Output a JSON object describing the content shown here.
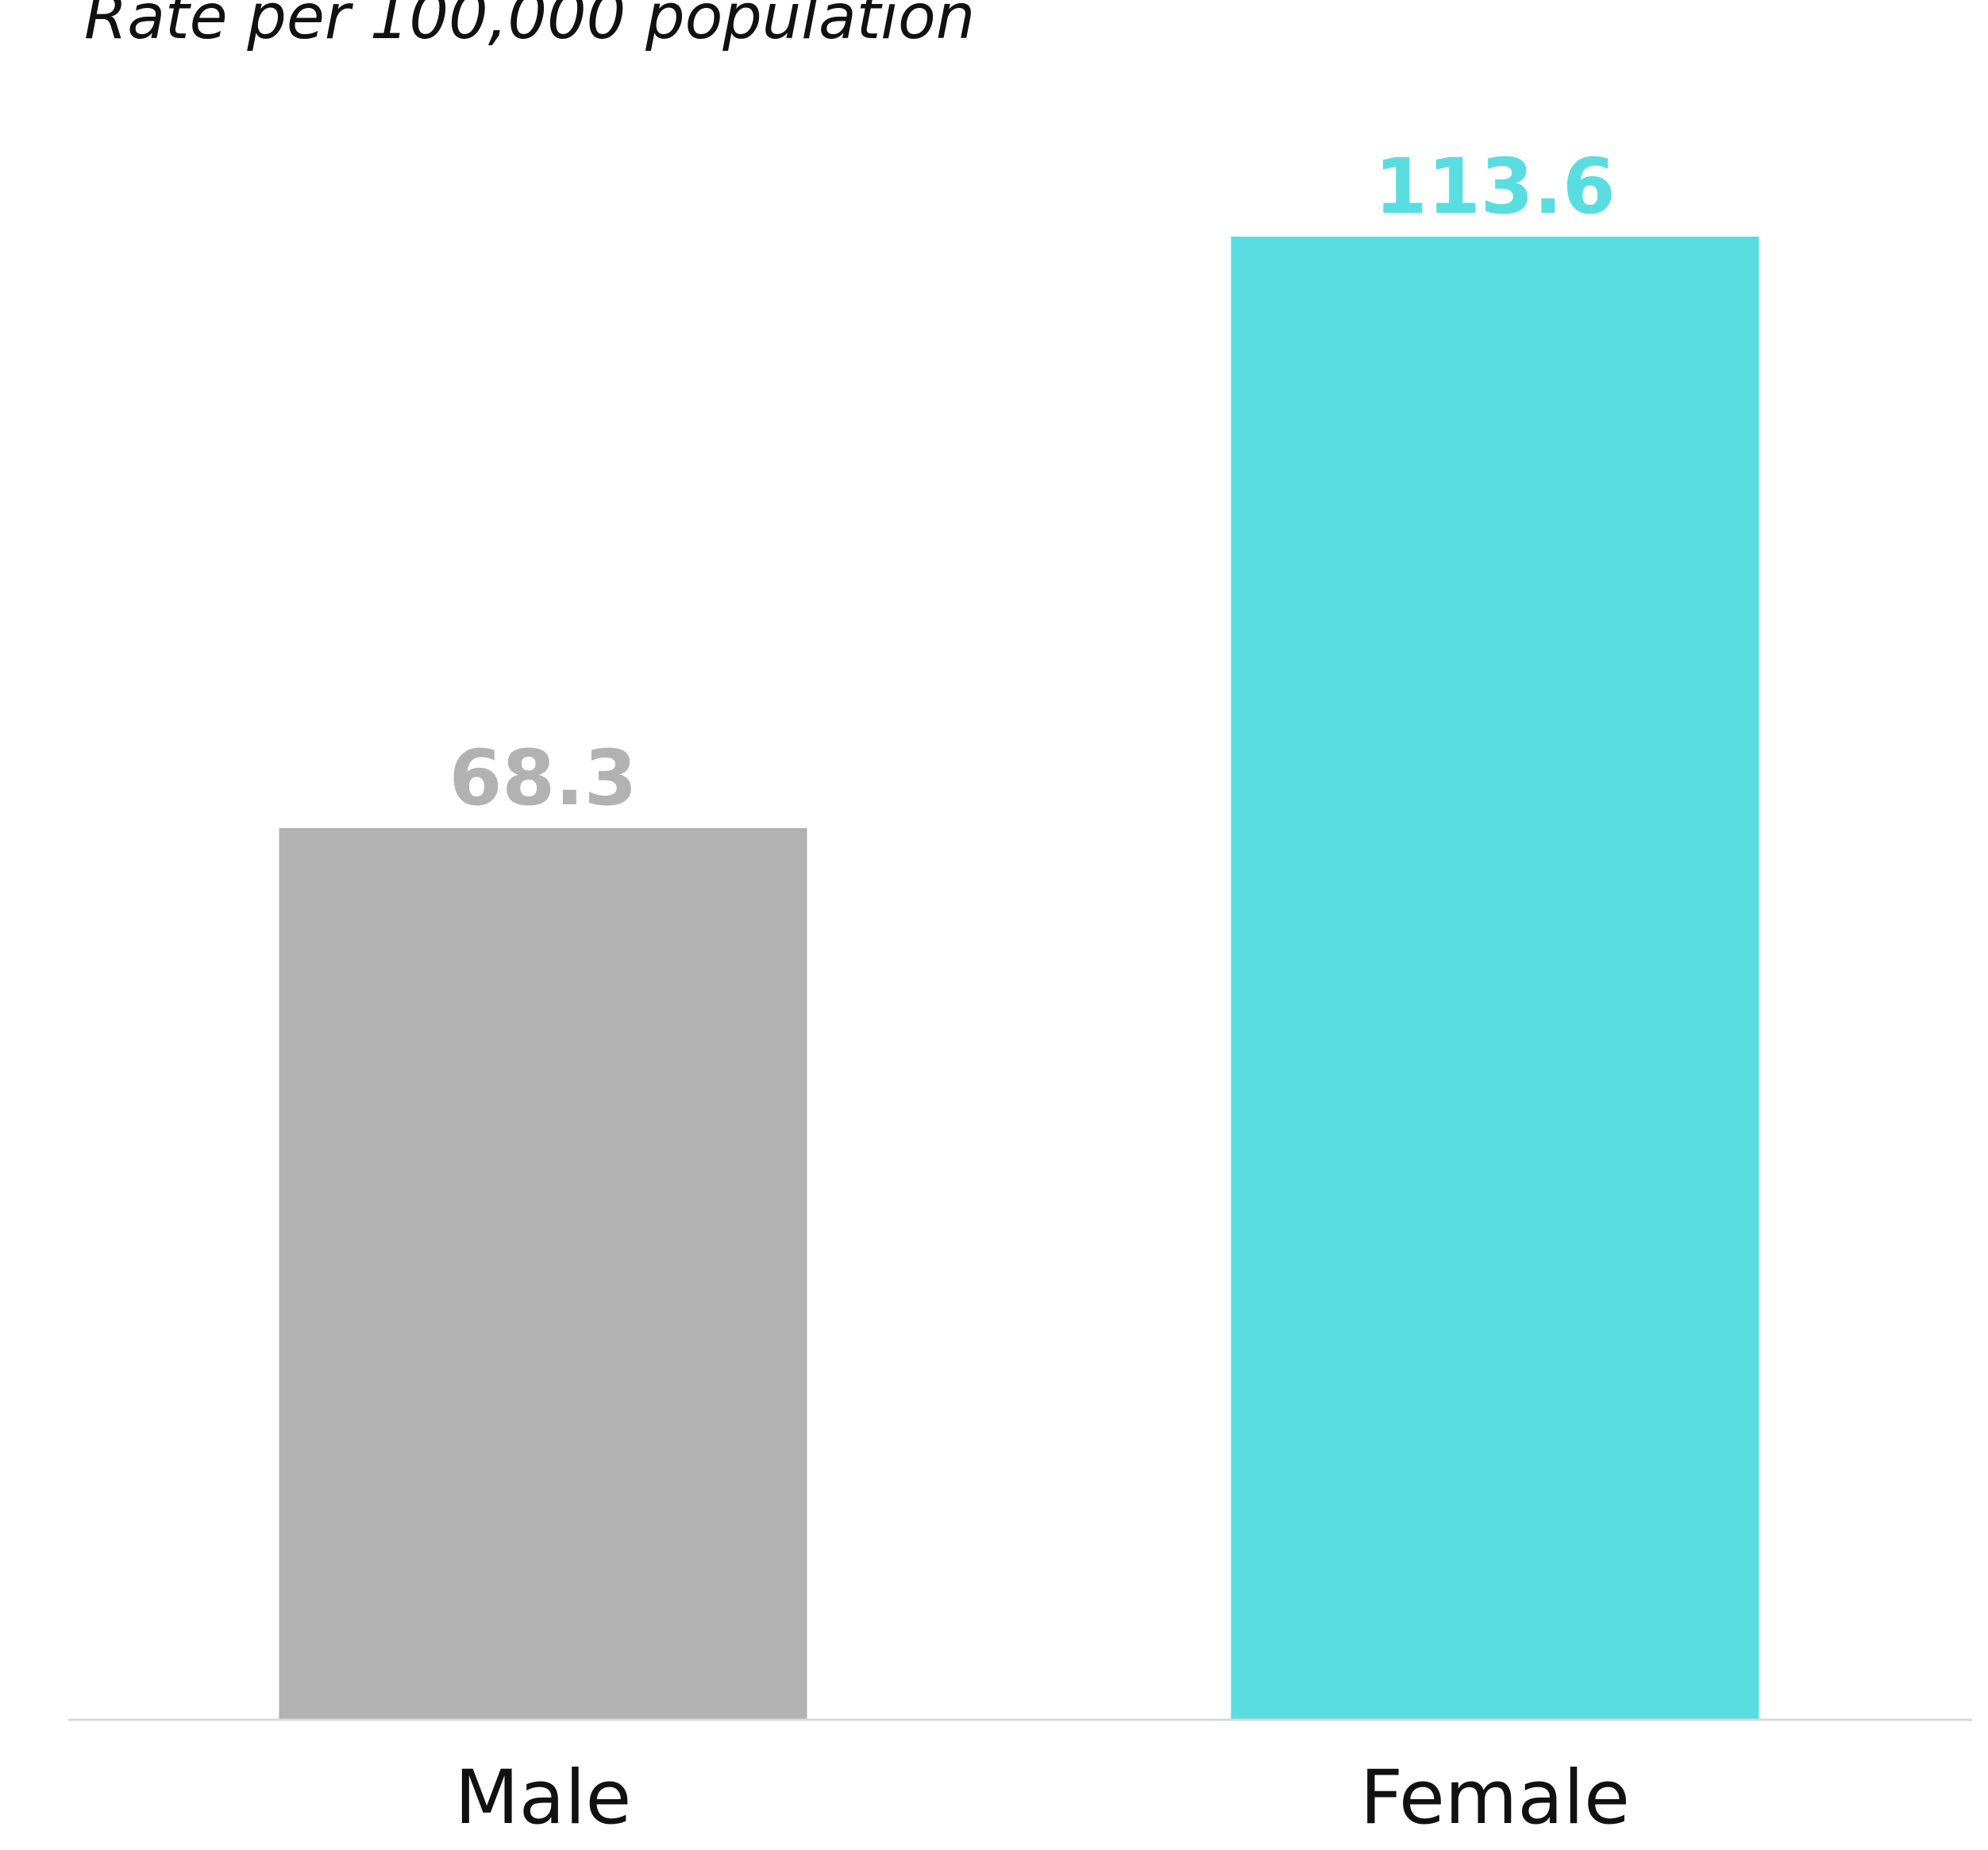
{
  "chart_data": {
    "type": "bar",
    "title": "",
    "ylabel": "Rate per 100,000 population",
    "xlabel": "",
    "categories": [
      "Male",
      "Female"
    ],
    "values": [
      68.3,
      113.6
    ],
    "value_labels": [
      "68.3",
      "113.6"
    ],
    "colors": [
      "#b2b2b2",
      "#59dde0"
    ],
    "ylim": [
      0,
      113.6
    ],
    "grid": false,
    "legend": "none",
    "axis_line_color": "#d9d9d9"
  }
}
